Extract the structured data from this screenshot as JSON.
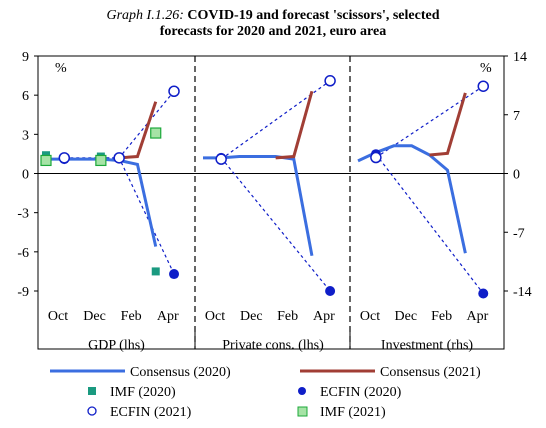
{
  "title": {
    "prefix": "Graph I.1.26:",
    "line1": "COVID-19 and forecast 'scissors', selected",
    "line2": "forecasts for 2020 and 2021, euro area"
  },
  "chart_data": {
    "type": "line",
    "left_axis": {
      "unit": "%",
      "ylim": [
        -12,
        9
      ],
      "ticks": [
        9,
        6,
        3,
        0,
        -3,
        -6,
        -9
      ]
    },
    "right_axis": {
      "unit": "%",
      "ylim": [
        -28,
        14
      ],
      "ticks": [
        14,
        7,
        0,
        -7,
        -14
      ]
    },
    "x_ticks": [
      "Oct",
      "Dec",
      "Feb",
      "Apr"
    ],
    "panels": [
      {
        "name": "GDP (lhs)",
        "axis": "left",
        "consensus_2020": {
          "x": [
            "Oct",
            "Nov",
            "Dec",
            "Jan",
            "Feb",
            "Mar",
            "Apr"
          ],
          "values": [
            1.1,
            1.1,
            1.1,
            1.1,
            1.0,
            0.7,
            -5.6
          ]
        },
        "consensus_2021": {
          "x": [
            "Feb",
            "Mar",
            "Apr"
          ],
          "values": [
            1.2,
            1.3,
            5.5
          ]
        },
        "imf_2020": {
          "x": [
            "Oct",
            "Jan",
            "Apr"
          ],
          "values": [
            1.4,
            1.3,
            -7.5
          ]
        },
        "ecfin_2020": {
          "x": [
            "Nov",
            "Feb",
            "May"
          ],
          "values": [
            1.1,
            1.2,
            -7.7
          ]
        },
        "ecfin_2021": {
          "x": [
            "Nov",
            "Feb",
            "May"
          ],
          "values": [
            1.2,
            1.2,
            6.3
          ]
        },
        "imf_2021": {
          "x": [
            "Oct",
            "Jan",
            "Apr"
          ],
          "values": [
            1.0,
            1.0,
            3.1
          ]
        }
      },
      {
        "name": "Private cons. (lhs)",
        "axis": "left",
        "consensus_2020": {
          "x": [
            "Oct",
            "Nov",
            "Dec",
            "Jan",
            "Feb",
            "Mar",
            "Apr"
          ],
          "values": [
            1.2,
            1.2,
            1.3,
            1.3,
            1.3,
            1.1,
            -6.3
          ]
        },
        "consensus_2021": {
          "x": [
            "Feb",
            "Mar",
            "Apr"
          ],
          "values": [
            1.2,
            1.3,
            6.3
          ]
        },
        "ecfin_2020": {
          "x": [
            "Nov",
            "May"
          ],
          "values": [
            1.2,
            -9.0
          ]
        },
        "ecfin_2021": {
          "x": [
            "Nov",
            "May"
          ],
          "values": [
            1.1,
            7.1
          ]
        }
      },
      {
        "name": "Investment (rhs)",
        "axis": "right",
        "consensus_2020": {
          "x": [
            "Oct",
            "Nov",
            "Dec",
            "Jan",
            "Feb",
            "Mar",
            "Apr"
          ],
          "values": [
            1.5,
            2.5,
            3.3,
            3.3,
            2.2,
            0.4,
            -9.5
          ]
        },
        "consensus_2021": {
          "x": [
            "Feb",
            "Mar",
            "Apr"
          ],
          "values": [
            2.2,
            2.4,
            9.6
          ]
        },
        "ecfin_2020": {
          "x": [
            "Nov",
            "May"
          ],
          "values": [
            2.3,
            -14.3
          ]
        },
        "ecfin_2021": {
          "x": [
            "Nov",
            "May"
          ],
          "values": [
            1.9,
            10.4
          ]
        }
      }
    ],
    "legend": [
      {
        "key": "consensus_2020",
        "label": "Consensus (2020)",
        "color": "#3b6ee0",
        "marker": "line"
      },
      {
        "key": "consensus_2021",
        "label": "Consensus (2021)",
        "color": "#a13e35",
        "marker": "line"
      },
      {
        "key": "imf_2020",
        "label": "IMF (2020)",
        "color": "#1a9a80",
        "marker": "square-filled"
      },
      {
        "key": "ecfin_2020",
        "label": "ECFIN (2020)",
        "color": "#0f1ec8",
        "marker": "circle-filled"
      },
      {
        "key": "ecfin_2021",
        "label": "ECFIN (2021)",
        "color": "#0f1ec8",
        "marker": "circle-open"
      },
      {
        "key": "imf_2021",
        "label": "IMF (2021)",
        "color": "#1ca83a",
        "marker": "square-open"
      }
    ],
    "colors": {
      "imf_2021_fill": "#a6e3a6",
      "ecfin_2021_fill": "#ffffff",
      "ecfin_dashed": "#0f1ec8"
    }
  }
}
